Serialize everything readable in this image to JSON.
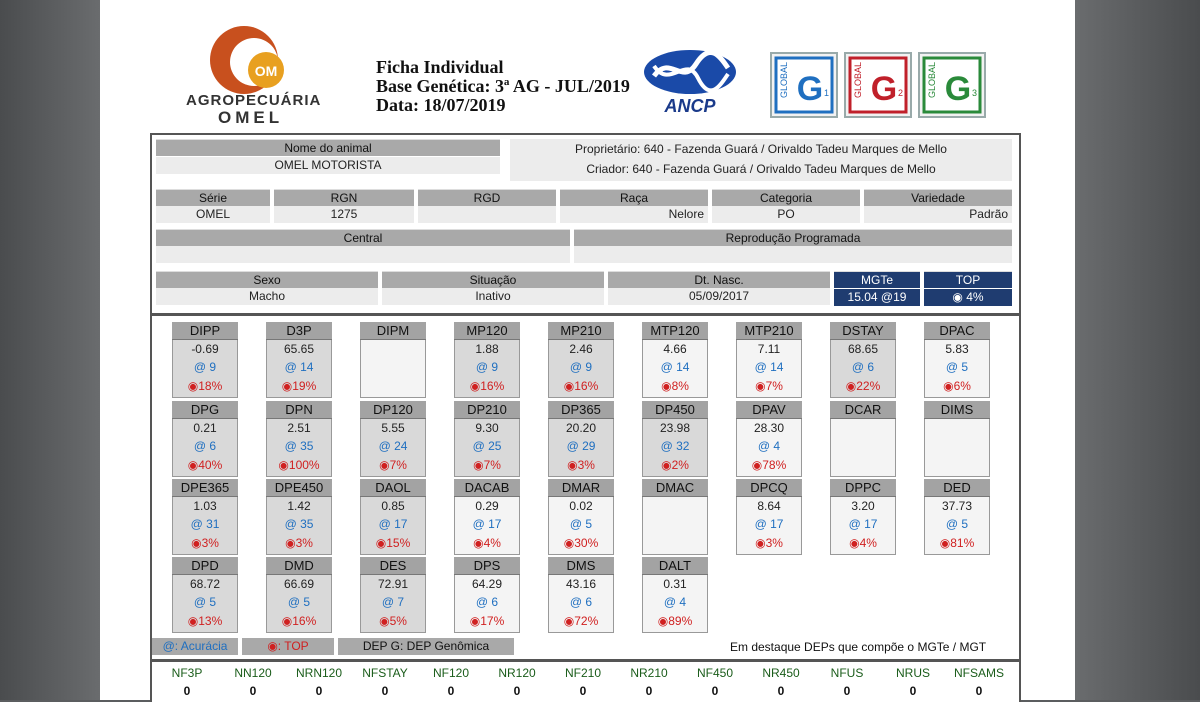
{
  "header": {
    "company_line1": "AGROPECUÁRIA",
    "company_line2": "OMEL",
    "logo_mark": "OM",
    "ficha": "Ficha Individual",
    "base": "Base Genética: 3ª AG - JUL/2019",
    "data": "Data: 18/07/2019",
    "ancp": "ANCP",
    "badges": [
      {
        "label": "GLOBAL",
        "letter": "G",
        "sub": "1",
        "color": "#1f6fc0"
      },
      {
        "label": "GLOBAL",
        "letter": "G",
        "sub": "2",
        "color": "#c0202a"
      },
      {
        "label": "GLOBAL",
        "letter": "G",
        "sub": "3",
        "color": "#2a8a3a"
      }
    ]
  },
  "animal": {
    "nome_label": "Nome do animal",
    "nome": "OMEL MOTORISTA",
    "proprietario": "Proprietário: 640 - Fazenda Guará / Orivaldo Tadeu Marques de Mello",
    "criador": "Criador: 640 - Fazenda Guará / Orivaldo Tadeu Marques de Mello",
    "row2_headers": [
      "Série",
      "RGN",
      "RGD",
      "Raça",
      "Categoria",
      "Variedade"
    ],
    "row2_values": [
      "OMEL",
      "1275",
      "",
      "Nelore",
      "PO",
      "Padrão"
    ],
    "central_label": "Central",
    "reproducao_label": "Reprodução Programada",
    "sexo_label": "Sexo",
    "sexo": "Macho",
    "situacao_label": "Situação",
    "situacao": "Inativo",
    "nasc_label": "Dt. Nasc.",
    "nasc": "05/09/2017",
    "mgte_label": "MGTe",
    "mgte": "15.04 @19",
    "top_label": "TOP",
    "top": "◉ 4%"
  },
  "deps": [
    [
      {
        "name": "DIPP",
        "value": "-0.69",
        "acc": "9",
        "top": "18%"
      },
      {
        "name": "D3P",
        "value": "65.65",
        "acc": "14",
        "top": "19%"
      },
      {
        "name": "DIPM",
        "value": "",
        "acc": "",
        "top": ""
      },
      {
        "name": "MP120",
        "value": "1.88",
        "acc": "9",
        "top": "16%"
      },
      {
        "name": "MP210",
        "value": "2.46",
        "acc": "9",
        "top": "16%"
      },
      {
        "name": "MTP120",
        "value": "4.66",
        "acc": "14",
        "top": "8%"
      },
      {
        "name": "MTP210",
        "value": "7.11",
        "acc": "14",
        "top": "7%"
      },
      {
        "name": "DSTAY",
        "value": "68.65",
        "acc": "6",
        "top": "22%"
      },
      {
        "name": "DPAC",
        "value": "5.83",
        "acc": "5",
        "top": "6%"
      }
    ],
    [
      {
        "name": "DPG",
        "value": "0.21",
        "acc": "6",
        "top": "40%"
      },
      {
        "name": "DPN",
        "value": "2.51",
        "acc": "35",
        "top": "100%"
      },
      {
        "name": "DP120",
        "value": "5.55",
        "acc": "24",
        "top": "7%"
      },
      {
        "name": "DP210",
        "value": "9.30",
        "acc": "25",
        "top": "7%"
      },
      {
        "name": "DP365",
        "value": "20.20",
        "acc": "29",
        "top": "3%"
      },
      {
        "name": "DP450",
        "value": "23.98",
        "acc": "32",
        "top": "2%"
      },
      {
        "name": "DPAV",
        "value": "28.30",
        "acc": "4",
        "top": "78%"
      },
      {
        "name": "DCAR",
        "value": "",
        "acc": "",
        "top": ""
      },
      {
        "name": "DIMS",
        "value": "",
        "acc": "",
        "top": ""
      }
    ],
    [
      {
        "name": "DPE365",
        "value": "1.03",
        "acc": "31",
        "top": "3%"
      },
      {
        "name": "DPE450",
        "value": "1.42",
        "acc": "35",
        "top": "3%"
      },
      {
        "name": "DAOL",
        "value": "0.85",
        "acc": "17",
        "top": "15%"
      },
      {
        "name": "DACAB",
        "value": "0.29",
        "acc": "17",
        "top": "4%"
      },
      {
        "name": "DMAR",
        "value": "0.02",
        "acc": "5",
        "top": "30%"
      },
      {
        "name": "DMAC",
        "value": "",
        "acc": "",
        "top": ""
      },
      {
        "name": "DPCQ",
        "value": "8.64",
        "acc": "17",
        "top": "3%"
      },
      {
        "name": "DPPC",
        "value": "3.20",
        "acc": "17",
        "top": "4%"
      },
      {
        "name": "DED",
        "value": "37.73",
        "acc": "5",
        "top": "81%"
      }
    ],
    [
      {
        "name": "DPD",
        "value": "68.72",
        "acc": "5",
        "top": "13%"
      },
      {
        "name": "DMD",
        "value": "66.69",
        "acc": "5",
        "top": "16%"
      },
      {
        "name": "DES",
        "value": "72.91",
        "acc": "7",
        "top": "5%"
      },
      {
        "name": "DPS",
        "value": "64.29",
        "acc": "6",
        "top": "17%"
      },
      {
        "name": "DMS",
        "value": "43.16",
        "acc": "6",
        "top": "72%"
      },
      {
        "name": "DALT",
        "value": "0.31",
        "acc": "4",
        "top": "89%"
      }
    ]
  ],
  "legend": {
    "acuracia": "@: Acurácia",
    "top": "◉: TOP",
    "genomica": "DEP G: DEP Genômica",
    "note": "Em destaque DEPs que compõe o MGTe / MGT"
  },
  "bottom": {
    "headers": [
      "NF3P",
      "NN120",
      "NRN120",
      "NFSTAY",
      "NF120",
      "NR120",
      "NF210",
      "NR210",
      "NF450",
      "NR450",
      "NFUS",
      "NRUS",
      "NFSAMS"
    ],
    "values": [
      "0",
      "0",
      "0",
      "0",
      "0",
      "0",
      "0",
      "0",
      "0",
      "0",
      "0",
      "0",
      "0"
    ]
  }
}
